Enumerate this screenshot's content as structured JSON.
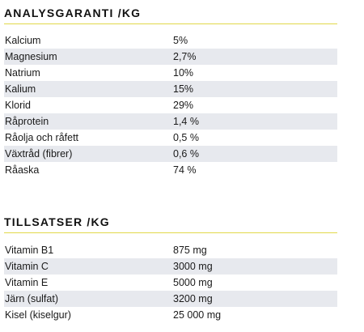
{
  "analysgaranti": {
    "heading": "ANALYSGARANTI /KG",
    "rows": [
      {
        "name": "Kalcium",
        "value": "5%"
      },
      {
        "name": "Magnesium",
        "value": "2,7%"
      },
      {
        "name": "Natrium",
        "value": "10%"
      },
      {
        "name": "Kalium",
        "value": "15%"
      },
      {
        "name": "Klorid",
        "value": "29%"
      },
      {
        "name": "Råprotein",
        "value": "1,4 %"
      },
      {
        "name": "Råolja och råfett",
        "value": "0,5 %"
      },
      {
        "name": "Växtråd (fibrer)",
        "value": "0,6 %"
      },
      {
        "name": "Råaska",
        "value": "74 %"
      }
    ]
  },
  "tillsatser": {
    "heading": "TILLSATSER /KG",
    "rows": [
      {
        "name": "Vitamin B1",
        "value": "875 mg"
      },
      {
        "name": "Vitamin C",
        "value": "3000 mg"
      },
      {
        "name": "Vitamin E",
        "value": "5000 mg"
      },
      {
        "name": "Järn (sulfat)",
        "value": "3200 mg"
      },
      {
        "name": "Kisel (kiselgur)",
        "value": "25 000 mg"
      }
    ]
  },
  "colors": {
    "rule": "#e2d94a",
    "shaded_row": "#e7e9ee",
    "text": "#1a1a1a"
  }
}
